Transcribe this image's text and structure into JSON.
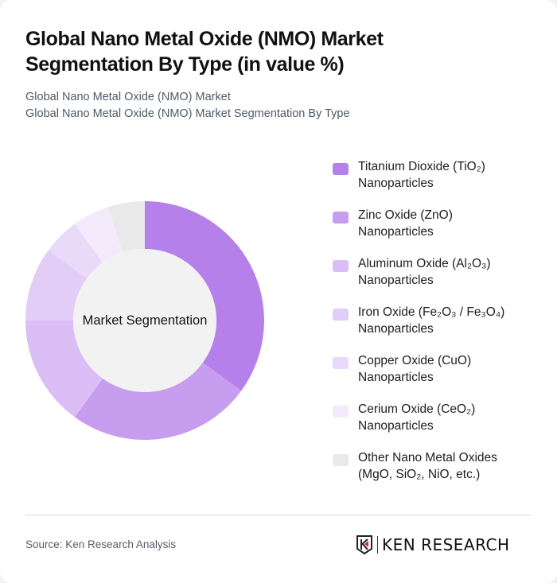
{
  "header": {
    "title": "Global Nano Metal Oxide (NMO) Market Segmentation By Type (in value %)",
    "subtitle_1": "Global Nano Metal Oxide (NMO) Market",
    "subtitle_2": "Global Nano Metal Oxide (NMO) Market Segmentation By Type"
  },
  "chart": {
    "center_label": "Market Segmentation"
  },
  "legend": {
    "items": [
      {
        "line1": "Titanium Dioxide (TiO₂)",
        "line2": "Nanoparticles",
        "color": "#b580ea"
      },
      {
        "line1": "Zinc Oxide (ZnO)",
        "line2": "Nanoparticles",
        "color": "#c69def"
      },
      {
        "line1": "Aluminum Oxide (Al₂O₃)",
        "line2": "Nanoparticles",
        "color": "#dbbef5"
      },
      {
        "line1": "Iron Oxide (Fe₂O₃ / Fe₃O₄)",
        "line2": "Nanoparticles",
        "color": "#e2cdf6"
      },
      {
        "line1": "Copper Oxide (CuO)",
        "line2": "Nanoparticles",
        "color": "#eadaf9"
      },
      {
        "line1": "Cerium Oxide (CeO₂)",
        "line2": "Nanoparticles",
        "color": "#f3ebfc"
      },
      {
        "line1": "Other Nano Metal Oxides",
        "line2": "(MgO, SiO₂, NiO, etc.)",
        "color": "#e9e9e9"
      }
    ]
  },
  "footer": {
    "source": "Source: Ken Research Analysis",
    "logo_text": "KEN RESEARCH"
  },
  "chart_data": {
    "type": "pie",
    "subtype": "donut",
    "title": "Global Nano Metal Oxide (NMO) Market Segmentation By Type (in value %)",
    "center_label": "Market Segmentation",
    "categories": [
      "Titanium Dioxide (TiO₂) Nanoparticles",
      "Zinc Oxide (ZnO) Nanoparticles",
      "Aluminum Oxide (Al₂O₃) Nanoparticles",
      "Iron Oxide (Fe₂O₃ / Fe₃O₄) Nanoparticles",
      "Copper Oxide (CuO) Nanoparticles",
      "Cerium Oxide (CeO₂) Nanoparticles",
      "Other Nano Metal Oxides (MgO, SiO₂, NiO, etc.)"
    ],
    "values": [
      35,
      25,
      15,
      10,
      5,
      5,
      5
    ],
    "colors": [
      "#b580ea",
      "#c69def",
      "#dbbef5",
      "#e2cdf6",
      "#eadaf9",
      "#f3ebfc",
      "#e9e9e9"
    ],
    "legend_position": "right",
    "start_angle": "top, clockwise"
  }
}
